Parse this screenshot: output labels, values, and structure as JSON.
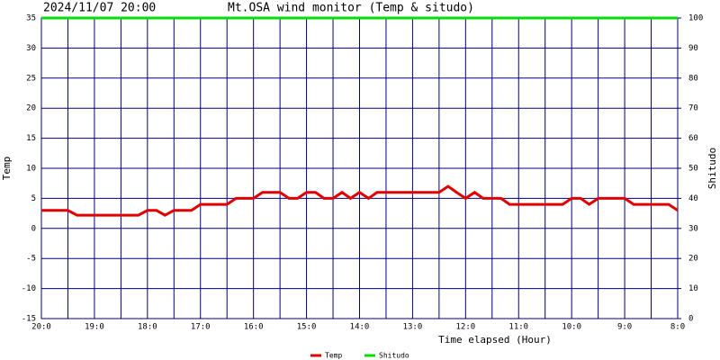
{
  "chart_data": {
    "type": "line",
    "timestamp": "2024/11/07 20:00",
    "title": "Mt.OSA wind monitor (Temp & situdo)",
    "ylabel": "Temp",
    "y2label": "Shitudo",
    "xlabel": "Time elapsed (Hour)",
    "xlim": [
      20,
      8
    ],
    "xticks": [
      {
        "value": 20,
        "label": "20:0"
      },
      {
        "value": 19,
        "label": "19:0"
      },
      {
        "value": 18,
        "label": "18:0"
      },
      {
        "value": 17,
        "label": "17:0"
      },
      {
        "value": 16,
        "label": "16:0"
      },
      {
        "value": 15,
        "label": "15:0"
      },
      {
        "value": 14,
        "label": "14:0"
      },
      {
        "value": 13,
        "label": "13:0"
      },
      {
        "value": 12,
        "label": "12:0"
      },
      {
        "value": 11,
        "label": "11:0"
      },
      {
        "value": 10,
        "label": "10:0"
      },
      {
        "value": 9,
        "label": "9:0"
      },
      {
        "value": 8,
        "label": "8:0"
      }
    ],
    "xminorticks": [
      19.5,
      18.5,
      17.5,
      16.5,
      15.5,
      14.5,
      13.5,
      12.5,
      11.5,
      10.5,
      9.5,
      8.5
    ],
    "ylim": [
      -15,
      35
    ],
    "yticks": [
      -15,
      -10,
      -5,
      0,
      5,
      10,
      15,
      20,
      25,
      30,
      35
    ],
    "y2lim": [
      0,
      100
    ],
    "y2ticks": [
      0,
      10,
      20,
      30,
      40,
      50,
      60,
      70,
      80,
      90,
      100
    ],
    "grid": true,
    "series": [
      {
        "name": "Temp",
        "color": "#e00000",
        "x": [
          20.0,
          19.5,
          19.33,
          18.17,
          18.0,
          17.83,
          17.67,
          17.5,
          17.17,
          17.0,
          16.5,
          16.33,
          16.0,
          15.83,
          15.5,
          15.33,
          15.17,
          15.0,
          14.83,
          14.67,
          14.5,
          14.33,
          14.17,
          14.0,
          13.83,
          13.67,
          12.5,
          12.33,
          12.17,
          12.0,
          11.83,
          11.67,
          11.33,
          11.17,
          10.17,
          10.0,
          9.83,
          9.67,
          9.5,
          9.0,
          8.83,
          8.17,
          8.0
        ],
        "values": [
          3,
          3,
          2.2,
          2.2,
          3,
          3,
          2.2,
          3,
          3,
          4,
          4,
          5,
          5,
          6,
          6,
          5,
          5,
          6,
          6,
          5,
          5,
          6,
          5,
          6,
          5,
          6,
          6,
          7,
          6,
          5,
          6,
          5,
          5,
          4,
          4,
          5,
          5,
          4,
          5,
          5,
          4,
          4,
          3
        ]
      },
      {
        "name": "Shitudo",
        "color": "#00e000",
        "axis": "y2",
        "x": [
          20,
          8
        ],
        "values": [
          100,
          100
        ]
      }
    ]
  }
}
